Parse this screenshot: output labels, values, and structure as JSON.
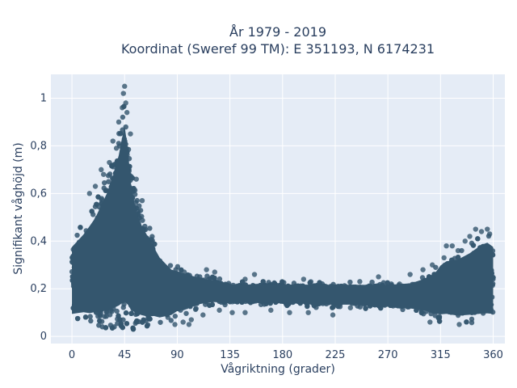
{
  "chart_data": {
    "type": "scatter",
    "title_line1": "År 1979 - 2019",
    "title_line2": "Koordinat (Sweref 99 TM): E 351193, N 6174231",
    "xlabel": "Vågriktning (grader)",
    "ylabel": "Signifikant våghöjd (m)",
    "xlim": [
      -18,
      370
    ],
    "ylim": [
      -0.03,
      1.1
    ],
    "xticks": [
      0,
      45,
      90,
      135,
      180,
      225,
      270,
      315,
      360
    ],
    "xtick_labels": [
      "0",
      "45",
      "90",
      "135",
      "180",
      "225",
      "270",
      "315",
      "360"
    ],
    "yticks": [
      0,
      0.2,
      0.4,
      0.6,
      0.8,
      1
    ],
    "ytick_labels": [
      "0",
      "0,2",
      "0,4",
      "0,6",
      "0,8",
      "1"
    ],
    "grid": true,
    "marker_color": "#34566e",
    "plot_bg": "#e5ecf6",
    "series": [
      {
        "envelope": {
          "x": [
            0,
            5,
            10,
            15,
            20,
            25,
            30,
            35,
            40,
            42,
            45,
            48,
            50,
            55,
            60,
            65,
            70,
            75,
            80,
            85,
            90,
            100,
            110,
            120,
            135,
            150,
            180,
            210,
            225,
            240,
            270,
            290,
            300,
            310,
            315,
            320,
            330,
            340,
            350,
            355,
            360
          ],
          "upper": [
            0.42,
            0.45,
            0.48,
            0.52,
            0.56,
            0.62,
            0.68,
            0.76,
            0.86,
            0.92,
            1.0,
            0.88,
            0.74,
            0.58,
            0.52,
            0.47,
            0.42,
            0.37,
            0.34,
            0.31,
            0.3,
            0.28,
            0.26,
            0.25,
            0.23,
            0.23,
            0.23,
            0.23,
            0.23,
            0.23,
            0.23,
            0.24,
            0.26,
            0.29,
            0.33,
            0.35,
            0.36,
            0.39,
            0.43,
            0.44,
            0.42
          ],
          "lower": [
            0.05,
            0.05,
            0.05,
            0.04,
            0.04,
            0.04,
            0.03,
            0.03,
            0.03,
            0.03,
            0.03,
            0.03,
            0.03,
            0.03,
            0.03,
            0.03,
            0.04,
            0.04,
            0.05,
            0.06,
            0.08,
            0.1,
            0.12,
            0.13,
            0.13,
            0.13,
            0.13,
            0.12,
            0.12,
            0.12,
            0.11,
            0.1,
            0.09,
            0.07,
            0.06,
            0.06,
            0.05,
            0.05,
            0.05,
            0.05,
            0.05
          ]
        },
        "outliers": [
          {
            "x": 45,
            "y": 1.05
          },
          {
            "x": 44,
            "y": 1.02
          },
          {
            "x": 46,
            "y": 0.98
          },
          {
            "x": 43,
            "y": 0.96
          },
          {
            "x": 47,
            "y": 0.94
          },
          {
            "x": 35,
            "y": 0.82
          },
          {
            "x": 40,
            "y": 0.9
          },
          {
            "x": 50,
            "y": 0.85
          },
          {
            "x": 38,
            "y": 0.79
          },
          {
            "x": 25,
            "y": 0.7
          },
          {
            "x": 27,
            "y": 0.68
          },
          {
            "x": 20,
            "y": 0.63
          },
          {
            "x": 15,
            "y": 0.6
          },
          {
            "x": 55,
            "y": 0.66
          },
          {
            "x": 60,
            "y": 0.57
          },
          {
            "x": 32,
            "y": 0.73
          },
          {
            "x": 336,
            "y": 0.4
          },
          {
            "x": 340,
            "y": 0.42
          },
          {
            "x": 345,
            "y": 0.45
          },
          {
            "x": 350,
            "y": 0.44
          },
          {
            "x": 355,
            "y": 0.45
          },
          {
            "x": 357,
            "y": 0.43
          },
          {
            "x": 325,
            "y": 0.38
          },
          {
            "x": 320,
            "y": 0.38
          },
          {
            "x": 318,
            "y": 0.33
          },
          {
            "x": 330,
            "y": 0.36
          },
          {
            "x": 308,
            "y": 0.3
          },
          {
            "x": 300,
            "y": 0.28
          },
          {
            "x": 306,
            "y": 0.06
          },
          {
            "x": 331,
            "y": 0.05
          },
          {
            "x": 238,
            "y": 0.12
          },
          {
            "x": 223,
            "y": 0.09
          },
          {
            "x": 202,
            "y": 0.1
          },
          {
            "x": 186,
            "y": 0.1
          },
          {
            "x": 170,
            "y": 0.11
          },
          {
            "x": 148,
            "y": 0.1
          },
          {
            "x": 137,
            "y": 0.1
          },
          {
            "x": 126,
            "y": 0.11
          },
          {
            "x": 112,
            "y": 0.09
          },
          {
            "x": 100,
            "y": 0.05
          },
          {
            "x": 102,
            "y": 0.07
          },
          {
            "x": 95,
            "y": 0.06
          },
          {
            "x": 88,
            "y": 0.05
          },
          {
            "x": 82,
            "y": 0.08
          },
          {
            "x": 115,
            "y": 0.28
          },
          {
            "x": 122,
            "y": 0.27
          },
          {
            "x": 148,
            "y": 0.24
          },
          {
            "x": 156,
            "y": 0.26
          },
          {
            "x": 198,
            "y": 0.24
          },
          {
            "x": 246,
            "y": 0.23
          },
          {
            "x": 262,
            "y": 0.25
          },
          {
            "x": 280,
            "y": 0.22
          },
          {
            "x": 289,
            "y": 0.26
          },
          {
            "x": 96,
            "y": 0.27
          }
        ]
      }
    ]
  }
}
